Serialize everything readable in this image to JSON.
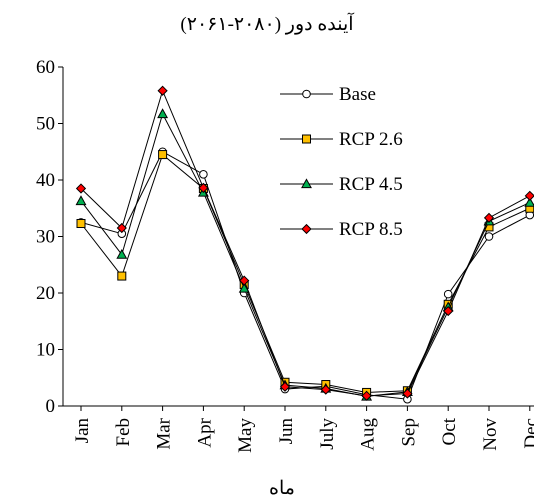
{
  "chart_data": {
    "type": "line",
    "title": "آینده دور (۲۰۸۰-۲۰۶۱)",
    "xlabel": "ماه",
    "ylabel": "",
    "ylim": [
      0,
      60
    ],
    "yticks": [
      "0",
      "10",
      "20",
      "30",
      "40",
      "50",
      "60"
    ],
    "grid": false,
    "legend_position": "top-right",
    "categories": [
      "Jan",
      "Feb",
      "Mar",
      "Apr",
      "May",
      "Jun",
      "July",
      "Aug",
      "Sep",
      "Oct",
      "Nov",
      "Dec"
    ],
    "series": [
      {
        "name": "Base",
        "marker": "circle",
        "color": "#000000",
        "fill": "#ffffff",
        "values": [
          32.5,
          30.5,
          45.0,
          41.0,
          20.0,
          3.0,
          3.5,
          2.0,
          1.2,
          19.8,
          30.0,
          33.8
        ]
      },
      {
        "name": "RCP 2.6",
        "marker": "square",
        "color": "#000000",
        "fill": "#ffc000",
        "values": [
          32.3,
          23.0,
          44.5,
          38.5,
          21.5,
          4.2,
          3.8,
          2.4,
          2.7,
          18.0,
          31.7,
          35.0
        ]
      },
      {
        "name": "RCP 4.5",
        "marker": "triangle",
        "color": "#000000",
        "fill": "#00b050",
        "values": [
          36.3,
          26.8,
          51.7,
          37.8,
          20.8,
          3.7,
          3.1,
          1.7,
          2.5,
          17.5,
          32.7,
          36.0
        ]
      },
      {
        "name": "RCP 8.5",
        "marker": "diamond",
        "color": "#000000",
        "fill": "#ff0000",
        "values": [
          38.5,
          31.5,
          55.8,
          38.6,
          22.2,
          3.4,
          2.9,
          1.8,
          2.2,
          16.8,
          33.3,
          37.2
        ]
      }
    ]
  }
}
